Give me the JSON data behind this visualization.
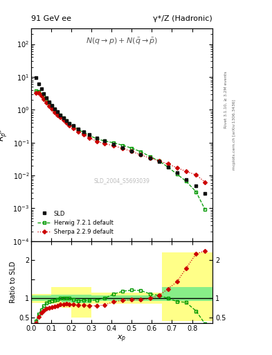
{
  "title_left": "91 GeV ee",
  "title_right": "γ*/Z (Hadronic)",
  "ylabel_main": "$R^{q_p}_p$",
  "annotation": "$N(q \\rightarrow p)+N(\\bar{q} \\rightarrow \\bar{p})$",
  "watermark": "SLD_2004_S5693039",
  "xlabel": "$x_p$",
  "ylabel_ratio": "Ratio to SLD",
  "right_label1": "Rivet 3.1.10, ≥ 3.2M events",
  "right_label2": "mcplots.cern.ch [arXiv:1306.3436]",
  "sld_x": [
    0.024,
    0.037,
    0.05,
    0.063,
    0.076,
    0.089,
    0.102,
    0.116,
    0.13,
    0.145,
    0.16,
    0.175,
    0.19,
    0.21,
    0.235,
    0.26,
    0.29,
    0.325,
    0.365,
    0.41,
    0.455,
    0.5,
    0.545,
    0.59,
    0.635,
    0.68,
    0.725,
    0.77,
    0.82,
    0.865
  ],
  "sld_y": [
    9.5,
    6.2,
    4.3,
    3.1,
    2.3,
    1.75,
    1.38,
    1.08,
    0.87,
    0.7,
    0.57,
    0.47,
    0.39,
    0.33,
    0.265,
    0.218,
    0.173,
    0.138,
    0.112,
    0.089,
    0.07,
    0.056,
    0.044,
    0.034,
    0.026,
    0.018,
    0.012,
    0.0075,
    0.0048,
    0.0028
  ],
  "herwig_x": [
    0.024,
    0.037,
    0.05,
    0.063,
    0.076,
    0.089,
    0.102,
    0.116,
    0.13,
    0.145,
    0.16,
    0.175,
    0.19,
    0.21,
    0.235,
    0.26,
    0.29,
    0.325,
    0.365,
    0.41,
    0.455,
    0.5,
    0.545,
    0.59,
    0.635,
    0.68,
    0.725,
    0.77,
    0.82,
    0.865
  ],
  "herwig_y": [
    3.8,
    3.6,
    3.0,
    2.5,
    2.0,
    1.6,
    1.28,
    1.02,
    0.84,
    0.7,
    0.575,
    0.47,
    0.39,
    0.32,
    0.247,
    0.207,
    0.163,
    0.132,
    0.112,
    0.099,
    0.083,
    0.068,
    0.053,
    0.038,
    0.028,
    0.018,
    0.011,
    0.0067,
    0.0032,
    0.00091
  ],
  "sherpa_x": [
    0.024,
    0.037,
    0.05,
    0.063,
    0.076,
    0.089,
    0.102,
    0.116,
    0.13,
    0.145,
    0.16,
    0.175,
    0.19,
    0.21,
    0.235,
    0.26,
    0.29,
    0.325,
    0.365,
    0.41,
    0.455,
    0.5,
    0.545,
    0.59,
    0.635,
    0.68,
    0.725,
    0.77,
    0.82,
    0.865
  ],
  "sherpa_y": [
    3.3,
    3.2,
    2.65,
    2.1,
    1.68,
    1.32,
    1.05,
    0.855,
    0.7,
    0.59,
    0.48,
    0.4,
    0.326,
    0.275,
    0.218,
    0.178,
    0.139,
    0.111,
    0.0924,
    0.081,
    0.0661,
    0.0541,
    0.0422,
    0.034,
    0.0278,
    0.0225,
    0.0172,
    0.0134,
    0.0104,
    0.0063
  ],
  "herwig_ratio": [
    0.4,
    0.58,
    0.7,
    0.81,
    0.87,
    0.914,
    0.928,
    0.944,
    0.966,
    1.0,
    1.009,
    1.0,
    1.0,
    0.97,
    0.932,
    0.949,
    0.942,
    0.957,
    1.0,
    1.112,
    1.186,
    1.214,
    1.205,
    1.118,
    1.077,
    1.0,
    0.917,
    0.893,
    0.667,
    0.325
  ],
  "sherpa_ratio": [
    0.347,
    0.516,
    0.616,
    0.677,
    0.73,
    0.754,
    0.761,
    0.792,
    0.805,
    0.843,
    0.842,
    0.851,
    0.836,
    0.833,
    0.823,
    0.816,
    0.803,
    0.804,
    0.825,
    0.91,
    0.944,
    0.966,
    0.959,
    1.0,
    1.069,
    1.25,
    1.433,
    1.787,
    2.167,
    2.25
  ],
  "band_x": [
    0.0,
    0.05,
    0.1,
    0.15,
    0.2,
    0.3,
    0.4,
    0.5,
    0.6,
    0.65,
    0.7,
    0.9
  ],
  "yellow_low": [
    0.88,
    0.88,
    0.85,
    0.75,
    0.5,
    0.85,
    0.85,
    0.85,
    0.85,
    0.4,
    0.4,
    0.4
  ],
  "yellow_high": [
    1.12,
    1.12,
    1.3,
    1.3,
    1.3,
    1.15,
    1.15,
    1.15,
    1.15,
    2.2,
    2.2,
    2.2
  ],
  "green_low": [
    0.93,
    0.93,
    0.93,
    0.9,
    0.88,
    0.93,
    0.93,
    0.93,
    0.93,
    0.93,
    0.93,
    0.93
  ],
  "green_high": [
    1.07,
    1.07,
    1.1,
    1.1,
    1.1,
    1.07,
    1.07,
    1.07,
    1.07,
    1.3,
    1.3,
    1.3
  ],
  "ylim_main": [
    0.0001,
    300
  ],
  "ylim_ratio": [
    0.35,
    2.5
  ],
  "xlim": [
    0.0,
    0.9
  ],
  "sld_color": "#111111",
  "herwig_color": "#009900",
  "sherpa_color": "#cc0000"
}
